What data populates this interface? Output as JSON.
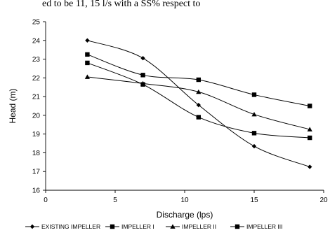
{
  "top_text": "ed to be 11, 15 l/s with a SS% respect to",
  "chart_data": {
    "type": "line",
    "xlabel": "Discharge (lps)",
    "ylabel": "Head (m)",
    "xlim": [
      0,
      20
    ],
    "ylim": [
      16,
      25
    ],
    "xticks": [
      0,
      5,
      10,
      15,
      20
    ],
    "yticks": [
      16,
      17,
      18,
      19,
      20,
      21,
      22,
      23,
      24,
      25
    ],
    "grid": false,
    "legend_position": "bottom",
    "x": [
      3,
      7,
      11,
      15,
      19
    ],
    "series": [
      {
        "name": "EXISTING IMPELLER",
        "marker": "diamond",
        "values": [
          24.0,
          23.05,
          20.55,
          18.35,
          17.25
        ]
      },
      {
        "name": "IMPELLER I",
        "marker": "square",
        "values": [
          22.8,
          21.65,
          19.9,
          19.05,
          18.8
        ]
      },
      {
        "name": "IMPELLER II",
        "marker": "triangle",
        "values": [
          22.05,
          21.7,
          21.25,
          20.05,
          19.25
        ]
      },
      {
        "name": "IMPELLER III",
        "marker": "square",
        "values": [
          23.25,
          22.15,
          21.9,
          21.1,
          20.5
        ]
      }
    ],
    "line_color": "#000000"
  }
}
